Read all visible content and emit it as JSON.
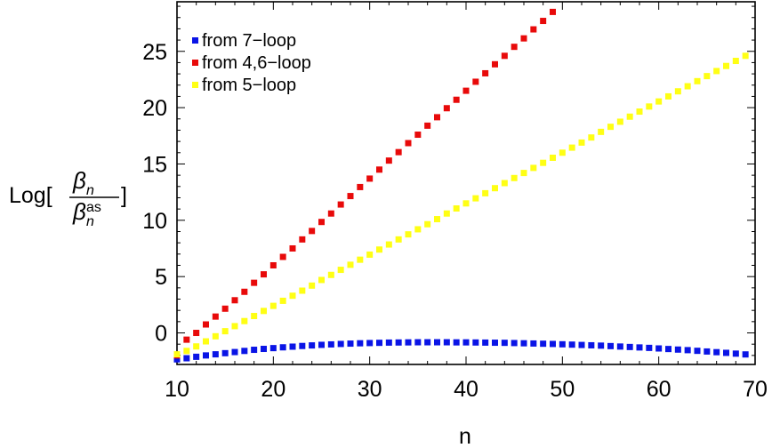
{
  "chart_data": {
    "type": "scatter",
    "xlabel": "n",
    "ylabel": {
      "prefix": "Log[",
      "numerator": "β",
      "numerator_sub": "n",
      "denominator": "β",
      "denominator_sub": "n",
      "denominator_sup": "as",
      "suffix": "]"
    },
    "xlim": [
      10,
      70
    ],
    "ylim": [
      -2.8,
      29.4
    ],
    "xticks": [
      10,
      20,
      30,
      40,
      50,
      60,
      70
    ],
    "yticks": [
      0,
      5,
      10,
      15,
      20,
      25
    ],
    "xtick_labels": [
      "10",
      "20",
      "30",
      "40",
      "50",
      "60",
      "70"
    ],
    "ytick_labels": [
      "0",
      "5",
      "10",
      "15",
      "20",
      "25"
    ],
    "grid": false,
    "legend_position": "top-left",
    "series": [
      {
        "name": "from 7−loop",
        "color": "#0a14e6",
        "x": [
          10,
          11,
          12,
          13,
          14,
          15,
          16,
          17,
          18,
          19,
          20,
          21,
          22,
          23,
          24,
          25,
          26,
          27,
          28,
          29,
          30,
          31,
          32,
          33,
          34,
          35,
          36,
          37,
          38,
          39,
          40,
          41,
          42,
          43,
          44,
          45,
          46,
          47,
          48,
          49,
          50,
          51,
          52,
          53,
          54,
          55,
          56,
          57,
          58,
          59,
          60,
          61,
          62,
          63,
          64,
          65,
          66,
          67,
          68,
          69
        ],
        "y": [
          -2.35,
          -2.25,
          -2.12,
          -2.0,
          -1.9,
          -1.8,
          -1.7,
          -1.6,
          -1.5,
          -1.42,
          -1.35,
          -1.28,
          -1.22,
          -1.16,
          -1.11,
          -1.06,
          -1.02,
          -0.98,
          -0.95,
          -0.92,
          -0.9,
          -0.88,
          -0.86,
          -0.85,
          -0.84,
          -0.83,
          -0.83,
          -0.83,
          -0.83,
          -0.84,
          -0.84,
          -0.85,
          -0.86,
          -0.87,
          -0.88,
          -0.9,
          -0.92,
          -0.94,
          -0.96,
          -0.98,
          -1.01,
          -1.04,
          -1.07,
          -1.1,
          -1.13,
          -1.17,
          -1.21,
          -1.25,
          -1.29,
          -1.33,
          -1.38,
          -1.43,
          -1.48,
          -1.53,
          -1.59,
          -1.65,
          -1.71,
          -1.77,
          -1.84,
          -1.91
        ]
      },
      {
        "name": "from 4,6−loop",
        "color": "#e80a0a",
        "x": [
          10,
          11,
          12,
          13,
          14,
          15,
          16,
          17,
          18,
          19,
          20,
          21,
          22,
          23,
          24,
          25,
          26,
          27,
          28,
          29,
          30,
          31,
          32,
          33,
          34,
          35,
          36,
          37,
          38,
          39,
          40,
          41,
          42,
          43,
          44,
          45,
          46,
          47,
          48,
          49
        ],
        "y": [
          -2.0,
          -0.6,
          0.0,
          0.75,
          1.45,
          2.15,
          2.9,
          3.65,
          4.45,
          5.2,
          6.0,
          6.75,
          7.5,
          8.3,
          9.05,
          9.85,
          10.6,
          11.4,
          12.15,
          12.95,
          13.7,
          14.5,
          15.3,
          16.05,
          16.85,
          17.6,
          18.4,
          19.15,
          19.95,
          20.7,
          21.5,
          22.3,
          23.05,
          23.85,
          24.6,
          25.4,
          26.15,
          26.95,
          27.7,
          28.5
        ]
      },
      {
        "name": "from 5−loop",
        "color": "#ffff14",
        "x": [
          10,
          11,
          12,
          13,
          14,
          15,
          16,
          17,
          18,
          19,
          20,
          21,
          22,
          23,
          24,
          25,
          26,
          27,
          28,
          29,
          30,
          31,
          32,
          33,
          34,
          35,
          36,
          37,
          38,
          39,
          40,
          41,
          42,
          43,
          44,
          45,
          46,
          47,
          48,
          49,
          50,
          51,
          52,
          53,
          54,
          55,
          56,
          57,
          58,
          59,
          60,
          61,
          62,
          63,
          64,
          65,
          66,
          67,
          68,
          69
        ],
        "y": [
          -1.9,
          -1.6,
          -1.2,
          -0.75,
          -0.3,
          0.15,
          0.6,
          1.05,
          1.5,
          1.95,
          2.4,
          2.85,
          3.3,
          3.75,
          4.2,
          4.7,
          5.15,
          5.6,
          6.05,
          6.5,
          6.95,
          7.4,
          7.85,
          8.3,
          8.75,
          9.2,
          9.65,
          10.1,
          10.6,
          11.05,
          11.5,
          11.95,
          12.4,
          12.85,
          13.3,
          13.75,
          14.2,
          14.65,
          15.1,
          15.55,
          16.0,
          16.45,
          16.9,
          17.35,
          17.85,
          18.3,
          18.75,
          19.2,
          19.65,
          20.1,
          20.55,
          21.0,
          21.45,
          21.9,
          22.35,
          22.8,
          23.25,
          23.7,
          24.15,
          24.6
        ]
      }
    ]
  }
}
